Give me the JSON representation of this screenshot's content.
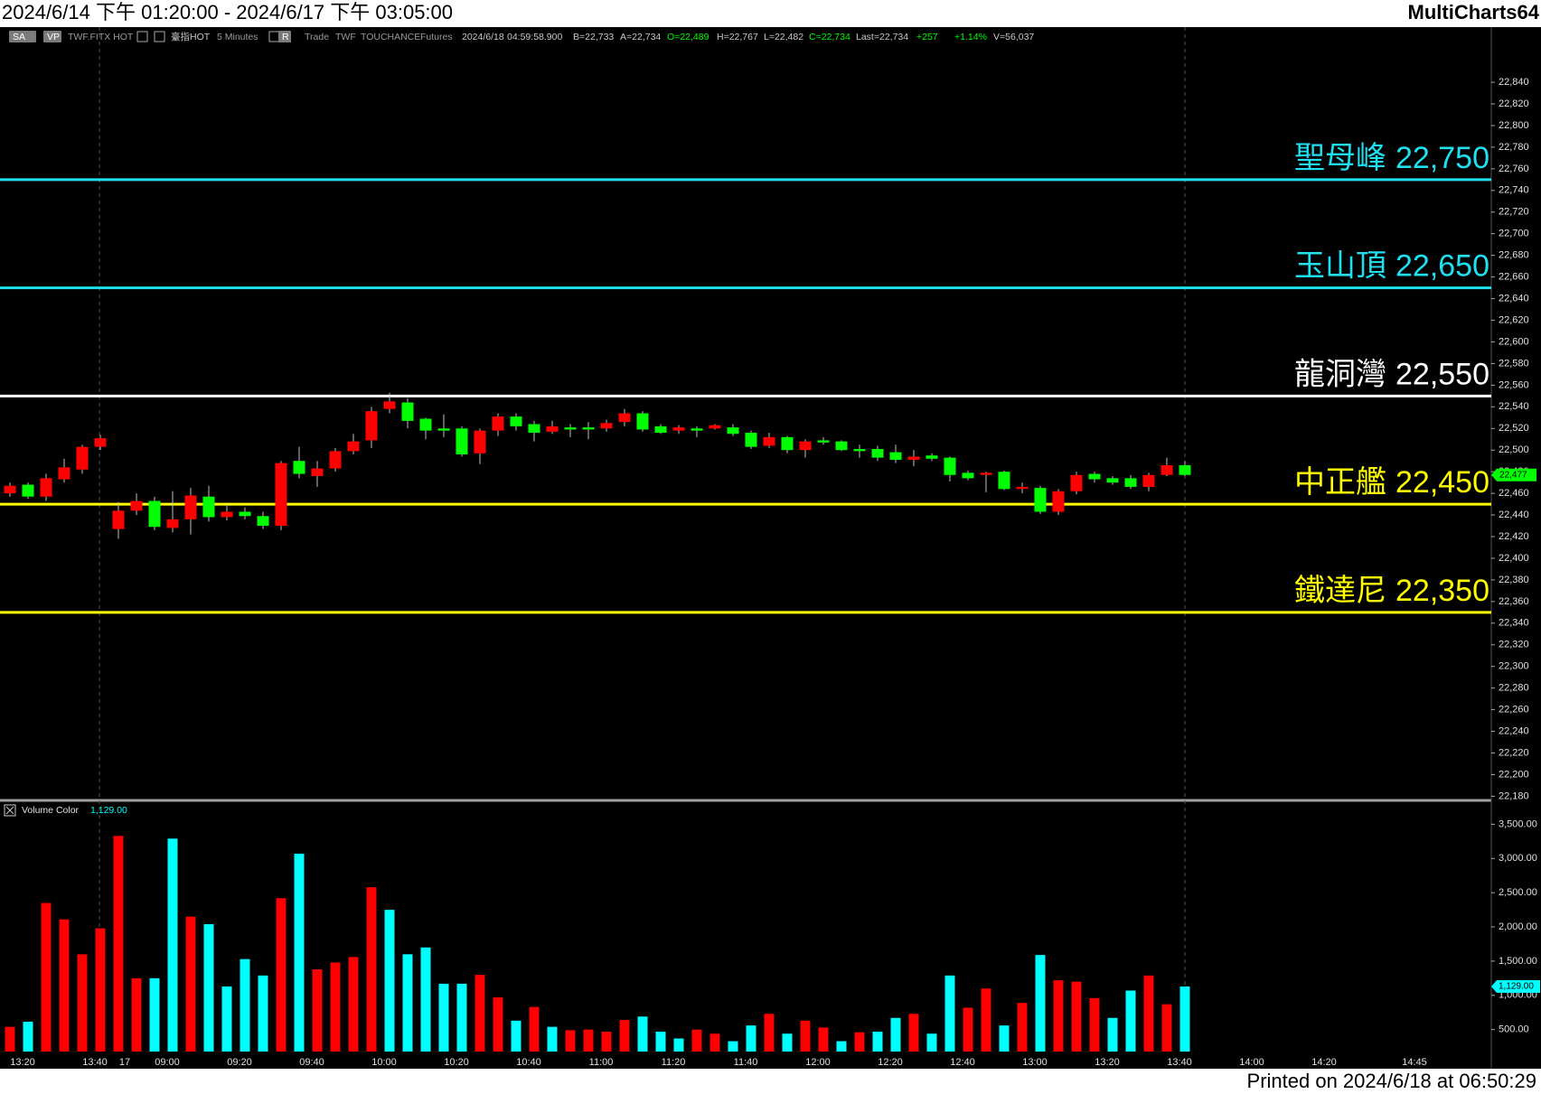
{
  "header": {
    "range": "2024/6/14 下午 01:20:00 - 2024/6/17 下午 03:05:00",
    "app": "MultiCharts64"
  },
  "footer": "Printed on 2024/6/18 at 06:50:29",
  "toolbar": [
    {
      "text": "SA",
      "color": "#ffffff"
    },
    {
      "text": "VP",
      "color": "#ffffff"
    },
    {
      "text": "TWF.FITX HOT",
      "color": "#9a9a9a"
    },
    {
      "text": "臺指HOT",
      "color": "#c8c8c8"
    },
    {
      "text": "5 Minutes",
      "color": "#9a9a9a"
    },
    {
      "text": "R",
      "color": "#ffffff"
    },
    {
      "text": "Trade",
      "color": "#9a9a9a"
    },
    {
      "text": "TWF",
      "color": "#9a9a9a"
    },
    {
      "text": "TOUCHANCE",
      "color": "#9a9a9a"
    },
    {
      "text": "Futures",
      "color": "#9a9a9a"
    },
    {
      "text": "2024/6/18",
      "color": "#c8c8c8"
    },
    {
      "text": "04:59:58.900",
      "color": "#c8c8c8"
    },
    {
      "text": "B=22,733",
      "color": "#c8c8c8"
    },
    {
      "text": "A=22,734",
      "color": "#c8c8c8"
    },
    {
      "text": "O=22,489",
      "color": "#00ff00"
    },
    {
      "text": "H=22,767",
      "color": "#c8c8c8"
    },
    {
      "text": "L=22,482",
      "color": "#c8c8c8"
    },
    {
      "text": "C=22,734",
      "color": "#00ff00"
    },
    {
      "text": "Last=22,734",
      "color": "#c8c8c8"
    },
    {
      "text": "+257",
      "color": "#00ff00"
    },
    {
      "text": "+1.14%",
      "color": "#00ff00"
    },
    {
      "text": "V=56,037",
      "color": "#c8c8c8"
    }
  ],
  "chart_data": [
    {
      "type": "candlestick",
      "categories": [
        null,
        "13:20",
        null,
        null,
        null,
        "13:40",
        "17",
        null,
        null,
        "09:00",
        null,
        null,
        null,
        "09:20",
        null,
        null,
        null,
        "09:40",
        null,
        null,
        null,
        "10:00",
        null,
        null,
        null,
        "10:20",
        null,
        null,
        null,
        "10:40",
        null,
        null,
        null,
        "11:00",
        null,
        null,
        null,
        "11:20",
        null,
        null,
        null,
        "11:40",
        null,
        null,
        null,
        "12:00",
        null,
        null,
        null,
        "12:20",
        null,
        null,
        null,
        "12:40",
        null,
        null,
        null,
        "13:00",
        null,
        null,
        null,
        "13:20",
        null,
        null,
        null,
        "13:40",
        null,
        null,
        null,
        "14:00",
        null,
        null,
        null,
        "14:20",
        null,
        null,
        null,
        null,
        "14:45"
      ],
      "open": [
        22460,
        22468,
        22457,
        22473,
        22482,
        22503,
        22427,
        22444,
        22453,
        22428,
        22436,
        22457,
        22438,
        22443,
        22439,
        22430,
        22490,
        22476,
        22483,
        22499,
        22509,
        22538,
        22544,
        22529,
        22520,
        22520,
        22497,
        22518,
        22531,
        22524,
        22517,
        22521,
        22521,
        22520,
        22526,
        22534,
        22522,
        22518,
        22520,
        22520,
        22521,
        22516,
        22504,
        22512,
        22500,
        22509,
        22508,
        22501,
        22501,
        22498,
        22491,
        22495,
        22493,
        22479,
        22477,
        22480,
        22464,
        22465,
        22443,
        22462,
        22478,
        22474,
        22474,
        22466,
        22477,
        22486,
        null,
        null,
        null,
        null,
        null,
        null,
        null,
        null,
        null,
        null,
        null,
        null,
        null
      ],
      "high": [
        22470,
        22470,
        22478,
        22492,
        22505,
        22514,
        22452,
        22460,
        22457,
        22462,
        22465,
        22467,
        22450,
        22447,
        22443,
        22490,
        22503,
        22490,
        22502,
        22515,
        22540,
        22553,
        22548,
        22530,
        22533,
        22522,
        22520,
        22534,
        22534,
        22527,
        22527,
        22524,
        22526,
        22528,
        22538,
        22536,
        22524,
        22523,
        22522,
        22524,
        22524,
        22518,
        22516,
        22513,
        22510,
        22512,
        22509,
        22505,
        22504,
        22505,
        22500,
        22497,
        22494,
        22481,
        22480,
        22481,
        22470,
        22467,
        22464,
        22480,
        22480,
        22476,
        22477,
        22479,
        22493,
        22490,
        null,
        null,
        null,
        null,
        null,
        null,
        null,
        null,
        null,
        null,
        null,
        null,
        null
      ],
      "low": [
        22457,
        22455,
        22453,
        22470,
        22478,
        22500,
        22418,
        22440,
        22426,
        22424,
        22422,
        22434,
        22435,
        22436,
        22427,
        22426,
        22474,
        22466,
        22480,
        22496,
        22502,
        22534,
        22520,
        22510,
        22512,
        22494,
        22487,
        22513,
        22518,
        22508,
        22515,
        22512,
        22510,
        22517,
        22522,
        22517,
        22515,
        22515,
        22512,
        22519,
        22513,
        22501,
        22502,
        22497,
        22493,
        22505,
        22499,
        22493,
        22490,
        22488,
        22485,
        22490,
        22471,
        22472,
        22461,
        22463,
        22460,
        22441,
        22440,
        22459,
        22470,
        22468,
        22464,
        22462,
        22476,
        22476,
        null,
        null,
        null,
        null,
        null,
        null,
        null,
        null,
        null,
        null,
        null,
        null,
        null
      ],
      "close": [
        22467,
        22457,
        22474,
        22484,
        22503,
        22511,
        22444,
        22453,
        22429,
        22436,
        22458,
        22438,
        22443,
        22439,
        22430,
        22488,
        22478,
        22483,
        22499,
        22508,
        22536,
        22545,
        22527,
        22518,
        22518,
        22496,
        22518,
        22531,
        22522,
        22516,
        22522,
        22519,
        22519,
        22525,
        22534,
        22519,
        22516,
        22521,
        22518,
        22523,
        22515,
        22503,
        22512,
        22500,
        22508,
        22507,
        22500,
        22499,
        22493,
        22491,
        22494,
        22492,
        22477,
        22474,
        22479,
        22464,
        22466,
        22443,
        22462,
        22477,
        22473,
        22470,
        22466,
        22477,
        22486,
        22477,
        null,
        null,
        null,
        null,
        null,
        null,
        null,
        null,
        null,
        null,
        null,
        null,
        null
      ],
      "up_color": "#ff0000",
      "down_color": "#00ff00",
      "ylim": [
        22177,
        22891
      ],
      "yticks": [
        {
          "value": 22180,
          "label": "22,180"
        },
        {
          "value": 22200,
          "label": "22,200"
        },
        {
          "value": 22220,
          "label": "22,220"
        },
        {
          "value": 22240,
          "label": "22,240"
        },
        {
          "value": 22260,
          "label": "22,260"
        },
        {
          "value": 22280,
          "label": "22,280"
        },
        {
          "value": 22300,
          "label": "22,300"
        },
        {
          "value": 22320,
          "label": "22,320"
        },
        {
          "value": 22340,
          "label": "22,340"
        },
        {
          "value": 22360,
          "label": "22,360"
        },
        {
          "value": 22380,
          "label": "22,380"
        },
        {
          "value": 22400,
          "label": "22,400"
        },
        {
          "value": 22420,
          "label": "22,420"
        },
        {
          "value": 22440,
          "label": "22,440"
        },
        {
          "value": 22460,
          "label": "22,460"
        },
        {
          "value": 22480,
          "label": "22,480"
        },
        {
          "value": 22500,
          "label": "22,500"
        },
        {
          "value": 22520,
          "label": "22,520"
        },
        {
          "value": 22540,
          "label": "22,540"
        },
        {
          "value": 22560,
          "label": "22,560"
        },
        {
          "value": 22580,
          "label": "22,580"
        },
        {
          "value": 22600,
          "label": "22,600"
        },
        {
          "value": 22620,
          "label": "22,620"
        },
        {
          "value": 22640,
          "label": "22,640"
        },
        {
          "value": 22660,
          "label": "22,660"
        },
        {
          "value": 22680,
          "label": "22,680"
        },
        {
          "value": 22700,
          "label": "22,700"
        },
        {
          "value": 22720,
          "label": "22,720"
        },
        {
          "value": 22740,
          "label": "22,740"
        },
        {
          "value": 22760,
          "label": "22,760"
        },
        {
          "value": 22780,
          "label": "22,780"
        },
        {
          "value": 22800,
          "label": "22,800"
        },
        {
          "value": 22820,
          "label": "22,820"
        },
        {
          "value": 22840,
          "label": "22,840"
        }
      ],
      "last_label": "22,477",
      "last_color": "#00ff00",
      "annotations": [
        {
          "name": "聖母峰",
          "value": 22750,
          "label": "22,750",
          "color": "#1fe0f0"
        },
        {
          "name": "玉山頂",
          "value": 22650,
          "label": "22,650",
          "color": "#1fe0f0"
        },
        {
          "name": "龍洞灣",
          "value": 22550,
          "label": "22,550",
          "color": "#ffffff"
        },
        {
          "name": "中正艦",
          "value": 22450,
          "label": "22,450",
          "color": "#ffff00"
        },
        {
          "name": "鐵達尼",
          "value": 22350,
          "label": "22,350",
          "color": "#ffff00"
        }
      ]
    },
    {
      "type": "bar",
      "title": "Volume Color",
      "last_label": "1,129.00",
      "label_color": "#00ffff",
      "values": [
        540,
        615,
        2350,
        2110,
        1600,
        1980,
        3330,
        1250,
        1250,
        3290,
        2150,
        2040,
        1130,
        1530,
        1290,
        2420,
        3070,
        1380,
        1480,
        1560,
        2580,
        2250,
        1600,
        1700,
        1170,
        1170,
        1300,
        970,
        630,
        830,
        540,
        490,
        500,
        470,
        640,
        690,
        470,
        370,
        500,
        440,
        330,
        560,
        730,
        440,
        630,
        530,
        330,
        460,
        470,
        670,
        730,
        440,
        1290,
        820,
        1100,
        560,
        890,
        1590,
        1220,
        1200,
        960,
        670,
        1070,
        1290,
        870,
        1129,
        null,
        null,
        null,
        null,
        null,
        null,
        null,
        null,
        null,
        null,
        null,
        null,
        null
      ],
      "colors": [
        "#ff0000",
        "#00ffff",
        "#ff0000",
        "#ff0000",
        "#ff0000",
        "#ff0000",
        "#ff0000",
        "#ff0000",
        "#00ffff",
        "#00ffff",
        "#ff0000",
        "#00ffff",
        "#00ffff",
        "#00ffff",
        "#00ffff",
        "#ff0000",
        "#00ffff",
        "#ff0000",
        "#ff0000",
        "#ff0000",
        "#ff0000",
        "#00ffff",
        "#00ffff",
        "#00ffff",
        "#00ffff",
        "#00ffff",
        "#ff0000",
        "#ff0000",
        "#00ffff",
        "#ff0000",
        "#00ffff",
        "#ff0000",
        "#ff0000",
        "#ff0000",
        "#ff0000",
        "#00ffff",
        "#00ffff",
        "#00ffff",
        "#ff0000",
        "#ff0000",
        "#00ffff",
        "#00ffff",
        "#ff0000",
        "#00ffff",
        "#ff0000",
        "#ff0000",
        "#00ffff",
        "#ff0000",
        "#00ffff",
        "#00ffff",
        "#ff0000",
        "#00ffff",
        "#00ffff",
        "#ff0000",
        "#ff0000",
        "#00ffff",
        "#ff0000",
        "#00ffff",
        "#ff0000",
        "#ff0000",
        "#ff0000",
        "#00ffff",
        "#00ffff",
        "#ff0000",
        "#ff0000",
        "#00ffff",
        null,
        null,
        null,
        null,
        null,
        null,
        null,
        null,
        null,
        null,
        null,
        null,
        null
      ],
      "ylim": [
        179,
        3809
      ],
      "yticks": [
        {
          "value": 500,
          "label": "500.00"
        },
        {
          "value": 1000,
          "label": "1,000.00"
        },
        {
          "value": 1500,
          "label": "1,500.00"
        },
        {
          "value": 2000,
          "label": "2,000.00"
        },
        {
          "value": 2500,
          "label": "2,500.00"
        },
        {
          "value": 3000,
          "label": "3,000.00"
        },
        {
          "value": 3500,
          "label": "3,500.00"
        }
      ]
    }
  ]
}
